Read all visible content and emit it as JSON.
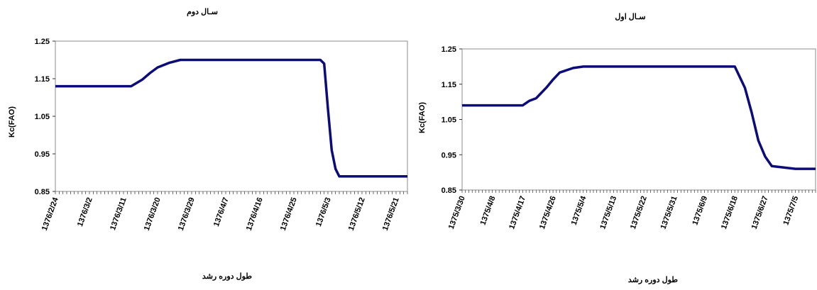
{
  "charts": [
    {
      "title": "سـال دوم",
      "xlabel": "طول دوره رشد",
      "ylabel": "Kc(FAO)",
      "yticks": [
        "1.25",
        "1.15",
        "1.05",
        "0.95",
        "0.85"
      ],
      "xticks": [
        "1376/2/24",
        "1376/3/2",
        "1376/3/11",
        "1376/3/20",
        "1376/3/29",
        "1376/4/7",
        "1376/4/16",
        "1376/4/25",
        "1376/5/3",
        "1376/5/12",
        "1376/5/21"
      ]
    },
    {
      "title": "سـال اول",
      "xlabel": "طول دوره رشد",
      "ylabel": "Kc(FAO)",
      "yticks": [
        "1.25",
        "1.15",
        "1.05",
        "0.95",
        "0.85"
      ],
      "xticks": [
        "1375/3/30",
        "1375/4/8",
        "1375/4/17",
        "1375/4/26",
        "1375/5/4",
        "1375/5/13",
        "1375/5/22",
        "1375/5/31",
        "1375/6/9",
        "1375/6/18",
        "1375/6/27",
        "1375/7/5"
      ]
    }
  ],
  "chart_data": [
    {
      "type": "line",
      "ylim": [
        0.85,
        1.25
      ],
      "grid": false,
      "line_color": "#0b0b7a",
      "x": [
        "1376/2/24",
        "1376/3/2",
        "1376/3/11",
        "1376/3/13",
        "1376/3/16",
        "1376/3/18",
        "1376/3/20",
        "1376/3/23",
        "1376/3/26",
        "1376/3/29",
        "1376/4/7",
        "1376/4/16",
        "1376/4/25",
        "1376/5/1",
        "1376/5/2",
        "1376/5/3",
        "1376/5/4",
        "1376/5/5",
        "1376/5/6",
        "1376/5/12",
        "1376/5/21",
        "1376/5/24"
      ],
      "values": [
        1.13,
        1.13,
        1.13,
        1.13,
        1.148,
        1.165,
        1.18,
        1.192,
        1.2,
        1.2,
        1.2,
        1.2,
        1.2,
        1.2,
        1.19,
        1.07,
        0.96,
        0.91,
        0.89,
        0.89,
        0.89,
        0.89
      ]
    },
    {
      "type": "line",
      "ylim": [
        0.85,
        1.25
      ],
      "grid": false,
      "line_color": "#0b0b7a",
      "x": [
        "1375/3/30",
        "1375/4/8",
        "1375/4/17",
        "1375/4/19",
        "1375/4/21",
        "1375/4/24",
        "1375/4/26",
        "1375/4/28",
        "1375/5/1",
        "1375/5/4",
        "1375/5/13",
        "1375/5/22",
        "1375/5/31",
        "1375/6/9",
        "1375/6/18",
        "1375/6/19",
        "1375/6/21",
        "1375/6/23",
        "1375/6/25",
        "1375/6/27",
        "1375/6/29",
        "1375/7/5",
        "1375/7/11"
      ],
      "values": [
        1.09,
        1.09,
        1.09,
        1.103,
        1.11,
        1.14,
        1.163,
        1.183,
        1.196,
        1.2,
        1.2,
        1.2,
        1.2,
        1.2,
        1.2,
        1.18,
        1.14,
        1.07,
        0.99,
        0.945,
        0.918,
        0.91,
        0.91
      ]
    }
  ]
}
